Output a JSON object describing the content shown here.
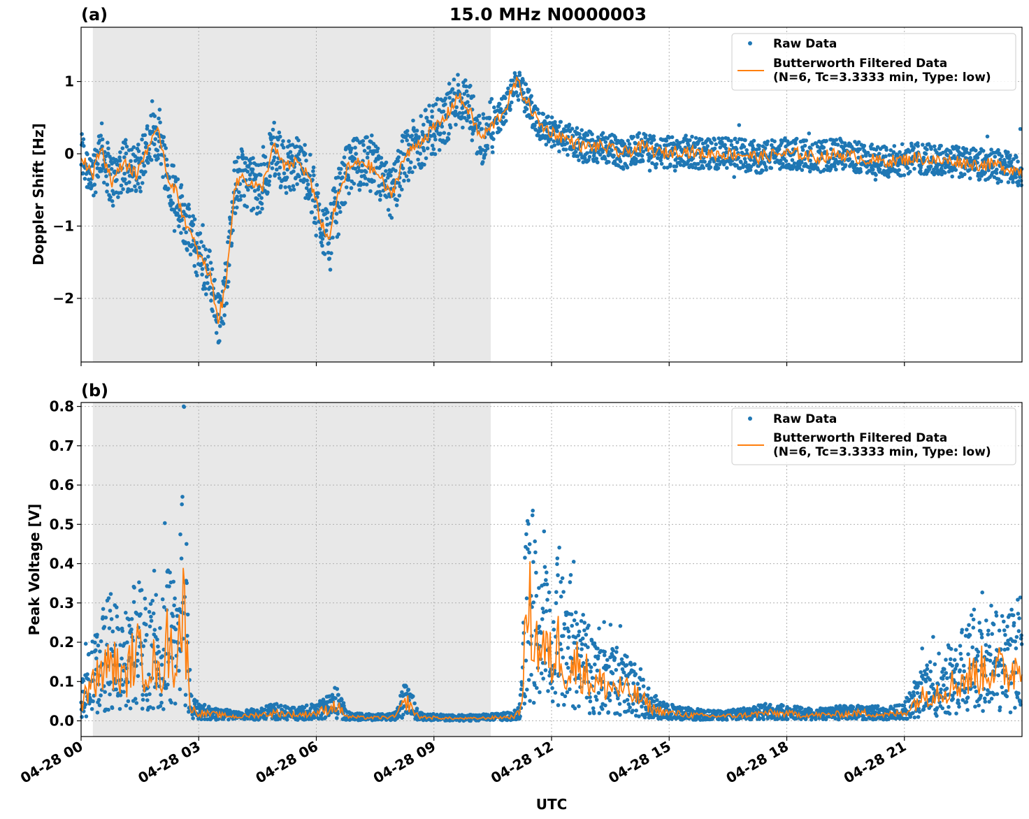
{
  "figure": {
    "title": "15.0 MHz N0000003",
    "xlabel": "UTC"
  },
  "colors": {
    "raw": "#1f77b4",
    "filtered": "#ff7f0e",
    "shade": "#e8e8e8"
  },
  "chart_data": [
    {
      "type": "scatter",
      "panel_label": "(a)",
      "ylabel": "Doppler Shift [Hz]",
      "ylim": [
        -2.88,
        1.75
      ],
      "y_ticks": [
        1,
        0,
        -1,
        -2
      ],
      "y_tick_labels": [
        "1",
        "0",
        "−1",
        "−2"
      ],
      "xlim_hours": [
        0,
        24
      ],
      "x_ticks_hours": [
        0,
        3,
        6,
        9,
        12,
        15,
        18,
        21
      ],
      "shaded_hours": [
        0.3,
        10.45
      ],
      "grid": true,
      "legend_position": "top-right",
      "legend": [
        "Raw Data",
        "Butterworth Filtered Data",
        "(N=6, Tc=3.3333 min, Type: low)"
      ],
      "series": [
        {
          "name": "Raw Data / Butterworth Filtered Data",
          "x_hours": [
            0,
            0.3,
            0.5,
            0.8,
            1.1,
            1.4,
            1.7,
            2.0,
            2.2,
            2.4,
            2.7,
            3.0,
            3.3,
            3.5,
            3.7,
            3.9,
            4.1,
            4.3,
            4.6,
            4.9,
            5.2,
            5.5,
            5.8,
            6.1,
            6.3,
            6.5,
            6.8,
            7.2,
            7.6,
            7.9,
            8.2,
            8.5,
            8.9,
            9.3,
            9.6,
            9.9,
            10.2,
            10.5,
            10.8,
            11.1,
            11.4,
            11.7,
            12.0,
            12.4,
            12.8,
            13.3,
            13.8,
            14.3,
            14.8,
            15.3,
            15.8,
            16.3,
            16.8,
            17.3,
            17.8,
            18.3,
            18.8,
            19.3,
            19.8,
            20.3,
            20.8,
            21.3,
            21.8,
            22.3,
            22.8,
            23.3,
            23.7,
            24.0
          ],
          "values": [
            0.0,
            -0.3,
            0.1,
            -0.4,
            -0.1,
            -0.3,
            0.1,
            0.3,
            -0.3,
            -0.5,
            -1.0,
            -1.4,
            -1.7,
            -2.3,
            -1.8,
            -0.5,
            -0.3,
            -0.4,
            -0.5,
            0.1,
            -0.2,
            -0.1,
            -0.3,
            -0.9,
            -1.2,
            -0.7,
            -0.2,
            -0.1,
            -0.3,
            -0.6,
            -0.1,
            0.1,
            0.3,
            0.5,
            0.8,
            0.6,
            0.2,
            0.4,
            0.6,
            1.0,
            0.7,
            0.4,
            0.3,
            0.2,
            0.1,
            0.1,
            0.0,
            0.1,
            0.0,
            0.05,
            0.0,
            0.0,
            0.0,
            -0.05,
            0.0,
            0.0,
            -0.05,
            0.0,
            -0.05,
            -0.1,
            -0.1,
            -0.05,
            -0.1,
            -0.1,
            -0.15,
            -0.15,
            -0.2,
            -0.25
          ]
        }
      ]
    },
    {
      "type": "scatter",
      "panel_label": "(b)",
      "ylabel": "Peak Voltage [V]",
      "ylim": [
        -0.04,
        0.81
      ],
      "y_ticks": [
        0.0,
        0.1,
        0.2,
        0.3,
        0.4,
        0.5,
        0.6,
        0.7,
        0.8
      ],
      "y_tick_labels": [
        "0.0",
        "0.1",
        "0.2",
        "0.3",
        "0.4",
        "0.5",
        "0.6",
        "0.7",
        "0.8"
      ],
      "xlim_hours": [
        0,
        24
      ],
      "x_ticks_hours": [
        0,
        3,
        6,
        9,
        12,
        15,
        18,
        21
      ],
      "x_tick_labels": [
        "04-28 00",
        "04-28 03",
        "04-28 06",
        "04-28 09",
        "04-28 12",
        "04-28 15",
        "04-28 18",
        "04-28 21"
      ],
      "shaded_hours": [
        0.3,
        10.45
      ],
      "grid": true,
      "legend_position": "top-right",
      "legend": [
        "Raw Data",
        "Butterworth Filtered Data",
        "(N=6, Tc=3.3333 min, Type: low)"
      ],
      "series": [
        {
          "name": "Raw Data / Butterworth Filtered Data",
          "x_hours": [
            0,
            0.2,
            0.5,
            0.8,
            1.1,
            1.4,
            1.6,
            1.8,
            2.0,
            2.2,
            2.4,
            2.6,
            2.8,
            3.0,
            3.5,
            4.0,
            4.5,
            5.0,
            5.5,
            6.0,
            6.3,
            6.5,
            6.8,
            7.2,
            7.6,
            8.0,
            8.3,
            8.6,
            9.0,
            9.5,
            10.0,
            10.5,
            11.0,
            11.2,
            11.4,
            11.6,
            11.8,
            12.0,
            12.2,
            12.4,
            12.7,
            13.0,
            13.4,
            13.8,
            14.2,
            14.6,
            15.0,
            15.5,
            16.0,
            16.5,
            17.0,
            17.5,
            18.0,
            18.5,
            19.0,
            19.5,
            20.0,
            20.5,
            21.0,
            21.3,
            21.6,
            22.0,
            22.4,
            22.8,
            23.2,
            23.6,
            24.0
          ],
          "values": [
            0.04,
            0.08,
            0.12,
            0.15,
            0.1,
            0.18,
            0.14,
            0.16,
            0.1,
            0.2,
            0.15,
            0.3,
            0.03,
            0.02,
            0.015,
            0.01,
            0.015,
            0.02,
            0.015,
            0.02,
            0.03,
            0.04,
            0.01,
            0.008,
            0.008,
            0.01,
            0.05,
            0.01,
            0.008,
            0.006,
            0.006,
            0.008,
            0.01,
            0.02,
            0.3,
            0.2,
            0.18,
            0.15,
            0.2,
            0.12,
            0.15,
            0.1,
            0.09,
            0.08,
            0.06,
            0.03,
            0.02,
            0.015,
            0.012,
            0.012,
            0.015,
            0.02,
            0.018,
            0.015,
            0.015,
            0.018,
            0.02,
            0.015,
            0.02,
            0.05,
            0.07,
            0.08,
            0.1,
            0.12,
            0.14,
            0.12,
            0.15
          ]
        }
      ]
    }
  ]
}
